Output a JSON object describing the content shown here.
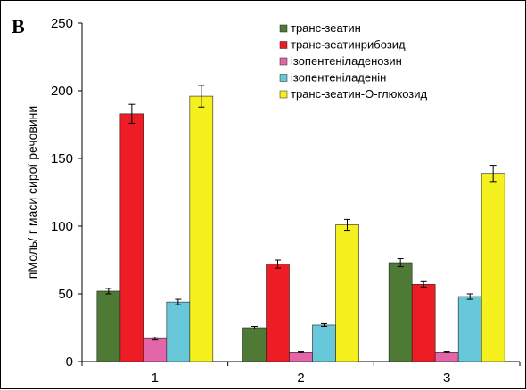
{
  "panel_label": "B",
  "chart_data": {
    "type": "bar",
    "categories": [
      "1",
      "2",
      "3"
    ],
    "ylabel": "пМоль/ г маси сирої речовини",
    "xlabel": "",
    "ylim": [
      0,
      250
    ],
    "yticks": [
      0,
      50,
      100,
      150,
      200,
      250
    ],
    "grid": false,
    "legend_position": "top-right",
    "series": [
      {
        "name": "транс-зеатин",
        "color": "#4e7a35",
        "values": [
          52,
          25,
          73
        ],
        "errors": [
          2,
          1,
          3
        ]
      },
      {
        "name": "транс-зеатинрибозид",
        "color": "#ee1c24",
        "values": [
          183,
          72,
          57
        ],
        "errors": [
          7,
          3,
          2
        ]
      },
      {
        "name": "ізопентеніладенозин",
        "color": "#e266a8",
        "values": [
          17,
          7,
          7
        ],
        "errors": [
          1,
          0.5,
          0.5
        ]
      },
      {
        "name": "ізопентеніладенін",
        "color": "#66c8d8",
        "values": [
          44,
          27,
          48
        ],
        "errors": [
          2,
          1,
          2
        ]
      },
      {
        "name": "транс-зеатин-О-глюкозид",
        "color": "#f5f01e",
        "values": [
          196,
          101,
          139
        ],
        "errors": [
          8,
          4,
          6
        ]
      }
    ]
  }
}
